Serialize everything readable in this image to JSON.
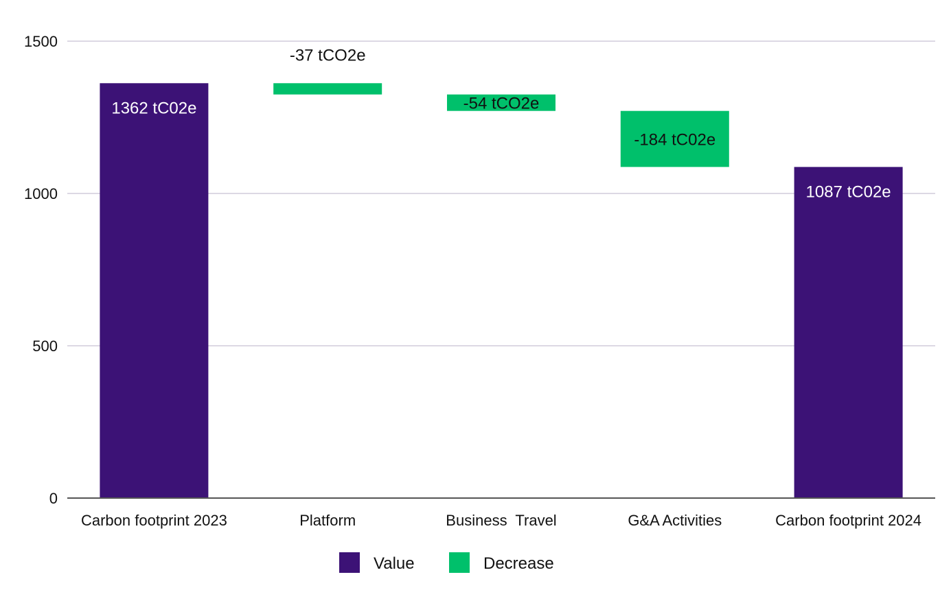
{
  "chart_data": {
    "type": "bar",
    "subtype": "waterfall",
    "title": "",
    "xlabel": "",
    "ylabel": "",
    "ylim": [
      0,
      1500
    ],
    "yticks": [
      0,
      500,
      1000,
      1500
    ],
    "grid": true,
    "legend_position": "bottom-center",
    "categories": [
      "Carbon footprint 2023",
      "Platform",
      "Business  Travel",
      "G&A Activities",
      "Carbon footprint 2024"
    ],
    "bars": [
      {
        "category": "Carbon footprint 2023",
        "kind": "Value",
        "start": 0,
        "end": 1362,
        "label": "1362 tC02e"
      },
      {
        "category": "Platform",
        "kind": "Decrease",
        "start": 1362,
        "end": 1325,
        "label": "-37 tCO2e"
      },
      {
        "category": "Business  Travel",
        "kind": "Decrease",
        "start": 1325,
        "end": 1271,
        "label": "-54 tCO2e"
      },
      {
        "category": "G&A Activities",
        "kind": "Decrease",
        "start": 1271,
        "end": 1087,
        "label": "-184 tC02e"
      },
      {
        "category": "Carbon footprint 2024",
        "kind": "Value",
        "start": 0,
        "end": 1087,
        "label": "1087 tC02e"
      }
    ],
    "legend": [
      {
        "name": "Value",
        "color": "#3c1276"
      },
      {
        "name": "Decrease",
        "color": "#00c06b"
      }
    ],
    "colors": {
      "value": "#3c1276",
      "decrease": "#00c06b",
      "grid": "#dcd8e4",
      "axis": "#555555"
    }
  }
}
